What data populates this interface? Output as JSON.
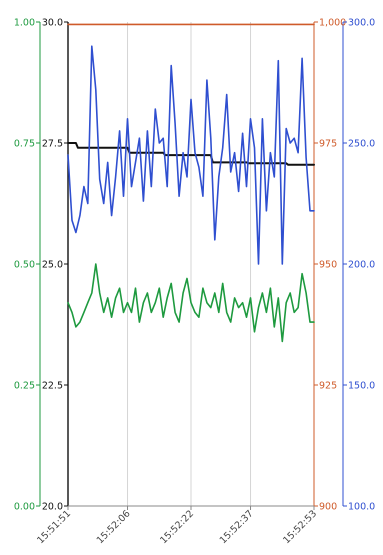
{
  "chart_data": {
    "type": "line",
    "colors": {
      "green": "#1e9a3f",
      "black": "#111111",
      "orange": "#cf5b2a",
      "blue": "#2f4fd0",
      "grid": "#d6d6d6"
    },
    "axes": [
      {
        "id": "green",
        "side": "left",
        "ylim": [
          0,
          1
        ],
        "ticks": [
          0,
          0.25,
          0.5,
          0.75,
          1
        ],
        "tick_labels": [
          "0.00",
          "0.25",
          "0.50",
          "0.75",
          "1.00"
        ]
      },
      {
        "id": "black",
        "side": "left",
        "ylim": [
          20,
          30
        ],
        "ticks": [
          20,
          22.5,
          25,
          27.5,
          30
        ],
        "tick_labels": [
          "20.0",
          "22.5",
          "25.0",
          "27.5",
          "30.0"
        ]
      },
      {
        "id": "orange",
        "side": "right",
        "ylim": [
          900,
          1000
        ],
        "ticks": [
          900,
          925,
          950,
          975,
          1000
        ],
        "tick_labels": [
          "900",
          "925",
          "950",
          "975",
          "1,000"
        ]
      },
      {
        "id": "blue",
        "side": "right",
        "ylim": [
          100,
          300
        ],
        "ticks": [
          100,
          150,
          200,
          250,
          300
        ],
        "tick_labels": [
          "100.0",
          "150.0",
          "200.0",
          "250.0",
          "300.0"
        ]
      }
    ],
    "x_ticks": [
      "15:51:51",
      "15:52:06",
      "15:52:22",
      "15:52:37",
      "15:52:53"
    ],
    "x_tick_values": [
      0,
      15,
      31,
      46,
      62
    ],
    "xlim": [
      0,
      62
    ],
    "grid": true,
    "series": [
      {
        "axis": "orange",
        "color": "orange",
        "x": [
          0,
          62
        ],
        "values": [
          999.5,
          999.5
        ]
      },
      {
        "axis": "black",
        "color": "black",
        "x": [
          0,
          2,
          2.5,
          15,
          15.5,
          24,
          24.5,
          36,
          36.5,
          45,
          45.5,
          55,
          55.5,
          62
        ],
        "values": [
          27.5,
          27.5,
          27.4,
          27.4,
          27.3,
          27.3,
          27.25,
          27.25,
          27.1,
          27.1,
          27.08,
          27.08,
          27.05,
          27.05
        ]
      },
      {
        "axis": "blue",
        "color": "blue",
        "x": [
          0,
          1,
          2,
          3,
          4,
          5,
          6,
          7,
          8,
          9,
          10,
          11,
          12,
          13,
          14,
          15,
          16,
          17,
          18,
          19,
          20,
          21,
          22,
          23,
          24,
          25,
          26,
          27,
          28,
          29,
          30,
          31,
          32,
          33,
          34,
          35,
          36,
          37,
          38,
          39,
          40,
          41,
          42,
          43,
          44,
          45,
          46,
          47,
          48,
          49,
          50,
          51,
          52,
          53,
          54,
          55,
          56,
          57,
          58,
          59,
          60,
          61,
          62
        ],
        "values": [
          245,
          218,
          213,
          220,
          232,
          225,
          290,
          272,
          235,
          225,
          242,
          220,
          236,
          255,
          228,
          260,
          232,
          242,
          252,
          226,
          255,
          232,
          264,
          250,
          252,
          232,
          282,
          258,
          228,
          246,
          236,
          268,
          246,
          240,
          228,
          276,
          252,
          210,
          236,
          248,
          270,
          238,
          246,
          230,
          254,
          232,
          260,
          248,
          200,
          260,
          222,
          246,
          236,
          284,
          200,
          256,
          250,
          252,
          246,
          285,
          244,
          222,
          222
        ]
      },
      {
        "axis": "green",
        "color": "green",
        "x": [
          0,
          1,
          2,
          3,
          4,
          5,
          6,
          7,
          8,
          9,
          10,
          11,
          12,
          13,
          14,
          15,
          16,
          17,
          18,
          19,
          20,
          21,
          22,
          23,
          24,
          25,
          26,
          27,
          28,
          29,
          30,
          31,
          32,
          33,
          34,
          35,
          36,
          37,
          38,
          39,
          40,
          41,
          42,
          43,
          44,
          45,
          46,
          47,
          48,
          49,
          50,
          51,
          52,
          53,
          54,
          55,
          56,
          57,
          58,
          59,
          60,
          61,
          62
        ],
        "values": [
          0.42,
          0.4,
          0.37,
          0.38,
          0.4,
          0.42,
          0.44,
          0.5,
          0.44,
          0.4,
          0.43,
          0.39,
          0.43,
          0.45,
          0.4,
          0.42,
          0.4,
          0.45,
          0.38,
          0.42,
          0.44,
          0.4,
          0.42,
          0.45,
          0.39,
          0.43,
          0.46,
          0.4,
          0.38,
          0.44,
          0.47,
          0.42,
          0.4,
          0.39,
          0.45,
          0.42,
          0.41,
          0.44,
          0.4,
          0.46,
          0.4,
          0.38,
          0.43,
          0.41,
          0.42,
          0.39,
          0.43,
          0.36,
          0.41,
          0.44,
          0.4,
          0.45,
          0.37,
          0.43,
          0.34,
          0.42,
          0.44,
          0.4,
          0.41,
          0.48,
          0.44,
          0.38,
          0.38
        ]
      }
    ]
  }
}
